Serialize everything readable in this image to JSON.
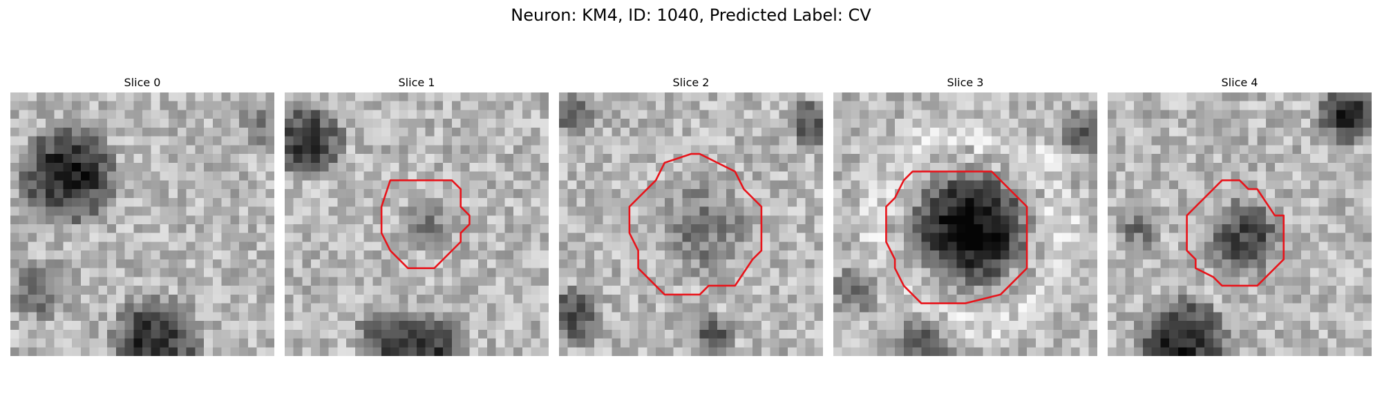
{
  "figure": {
    "title": "Neuron: KM4, ID: 1040, Predicted Label: CV",
    "contour_color": "#e8131a"
  },
  "panels": [
    {
      "title": "Slice 0",
      "has_contour": false
    },
    {
      "title": "Slice 1",
      "has_contour": true
    },
    {
      "title": "Slice 2",
      "has_contour": true
    },
    {
      "title": "Slice 3",
      "has_contour": true
    },
    {
      "title": "Slice 4",
      "has_contour": true
    }
  ]
}
